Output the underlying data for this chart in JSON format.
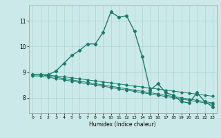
{
  "xlabel": "Humidex (Indice chaleur)",
  "x_ticks": [
    0,
    1,
    2,
    3,
    4,
    5,
    6,
    7,
    8,
    9,
    10,
    11,
    12,
    13,
    14,
    15,
    16,
    17,
    18,
    19,
    20,
    21,
    22,
    23
  ],
  "y_ticks": [
    8,
    9,
    10,
    11
  ],
  "ylim": [
    7.4,
    11.6
  ],
  "xlim": [
    -0.5,
    23.5
  ],
  "bg_color": "#cce9e9",
  "grid_color": "#aad4d4",
  "line_color": "#1a7a6a",
  "main_x": [
    0,
    1,
    2,
    3,
    4,
    5,
    6,
    7,
    8,
    9,
    10,
    11,
    12,
    13,
    14,
    15,
    16,
    17,
    18,
    19,
    20,
    21,
    22,
    23
  ],
  "main_y": [
    8.9,
    8.9,
    8.9,
    9.05,
    9.35,
    9.65,
    9.85,
    10.1,
    10.1,
    10.55,
    11.35,
    11.15,
    11.2,
    10.6,
    9.6,
    8.3,
    8.55,
    8.2,
    8.1,
    7.85,
    7.8,
    8.2,
    7.85,
    7.65
  ],
  "line1_x": [
    0,
    1,
    2,
    3,
    4,
    5,
    6,
    7,
    8,
    9,
    10,
    11,
    12,
    13,
    14,
    15,
    16,
    17,
    18,
    19,
    20,
    21,
    22,
    23
  ],
  "line1_y": [
    8.85,
    8.85,
    8.8,
    8.75,
    8.7,
    8.65,
    8.6,
    8.55,
    8.5,
    8.45,
    8.4,
    8.35,
    8.3,
    8.25,
    8.2,
    8.15,
    8.1,
    8.05,
    8.0,
    7.95,
    7.9,
    7.85,
    7.8,
    7.75
  ],
  "line2_x": [
    0,
    1,
    2,
    3,
    4,
    5,
    6,
    7,
    8,
    9,
    10,
    11,
    12,
    13,
    14,
    15,
    16,
    17,
    18,
    19,
    20,
    21,
    22,
    23
  ],
  "line2_y": [
    8.9,
    8.9,
    8.85,
    8.8,
    8.75,
    8.7,
    8.65,
    8.6,
    8.55,
    8.5,
    8.45,
    8.4,
    8.35,
    8.3,
    8.25,
    8.2,
    8.15,
    8.1,
    8.05,
    8.0,
    7.95,
    7.9,
    7.85,
    7.8
  ],
  "line3_x": [
    0,
    1,
    2,
    3,
    4,
    5,
    6,
    7,
    8,
    9,
    10,
    11,
    12,
    13,
    14,
    15,
    16,
    17,
    18,
    19,
    20,
    21,
    22,
    23
  ],
  "line3_y": [
    8.9,
    8.9,
    8.88,
    8.85,
    8.82,
    8.78,
    8.74,
    8.7,
    8.66,
    8.62,
    8.58,
    8.54,
    8.5,
    8.46,
    8.42,
    8.38,
    8.34,
    8.3,
    8.26,
    8.22,
    8.18,
    8.14,
    8.1,
    8.06
  ]
}
